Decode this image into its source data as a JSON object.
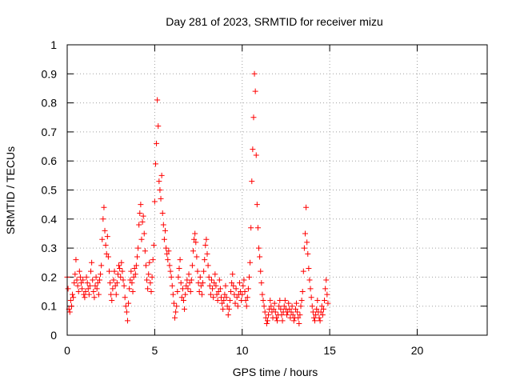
{
  "chart_data": {
    "type": "scatter",
    "title": "Day 281 of 2023, SRMTID for receiver mizu",
    "xlabel": "GPS time / hours",
    "ylabel": "SRMTID / TECUs",
    "xlim": [
      0,
      24
    ],
    "ylim": [
      0,
      1
    ],
    "x_ticks": [
      0,
      5,
      10,
      15,
      20
    ],
    "x_tick_labels": [
      "0",
      "5",
      "10",
      "15",
      "20"
    ],
    "y_ticks": [
      0,
      0.1,
      0.2,
      0.3,
      0.4,
      0.5,
      0.6,
      0.7,
      0.8,
      0.9,
      1
    ],
    "y_tick_labels": [
      "0",
      "0.1",
      "0.2",
      "0.3",
      "0.4",
      "0.5",
      "0.6",
      "0.7",
      "0.8",
      "0.9",
      "1"
    ],
    "grid": true,
    "marker": "+",
    "color": "#ff0000",
    "series": [
      {
        "name": "SRMTID",
        "x": [
          0.0,
          0.05,
          0.1,
          0.15,
          0.2,
          0.25,
          0.3,
          0.35,
          0.4,
          0.45,
          0.5,
          0.55,
          0.6,
          0.65,
          0.7,
          0.75,
          0.8,
          0.85,
          0.9,
          0.95,
          1.0,
          1.05,
          1.1,
          1.15,
          1.2,
          1.25,
          1.3,
          1.35,
          1.4,
          1.45,
          1.5,
          1.55,
          1.6,
          1.65,
          1.7,
          1.75,
          1.8,
          1.85,
          1.9,
          1.95,
          2.0,
          2.05,
          2.1,
          2.15,
          2.2,
          2.25,
          2.3,
          2.35,
          2.4,
          2.45,
          2.5,
          2.55,
          2.6,
          2.65,
          2.7,
          2.75,
          2.8,
          2.85,
          2.9,
          2.95,
          3.0,
          3.05,
          3.1,
          3.15,
          3.2,
          3.25,
          3.3,
          3.35,
          3.4,
          3.45,
          3.5,
          3.55,
          3.6,
          3.65,
          3.7,
          3.75,
          3.8,
          3.85,
          3.9,
          3.95,
          4.0,
          4.05,
          4.1,
          4.15,
          4.2,
          4.25,
          4.3,
          4.35,
          4.4,
          4.45,
          4.5,
          4.55,
          4.6,
          4.65,
          4.7,
          4.75,
          4.8,
          4.85,
          4.9,
          4.95,
          5.0,
          5.05,
          5.1,
          5.15,
          5.2,
          5.25,
          5.3,
          5.35,
          5.4,
          5.45,
          5.5,
          5.55,
          5.6,
          5.65,
          5.7,
          5.75,
          5.8,
          5.85,
          5.9,
          5.95,
          6.0,
          6.05,
          6.1,
          6.15,
          6.2,
          6.25,
          6.3,
          6.35,
          6.4,
          6.45,
          6.5,
          6.55,
          6.6,
          6.65,
          6.7,
          6.75,
          6.8,
          6.85,
          6.9,
          6.95,
          7.0,
          7.05,
          7.1,
          7.15,
          7.2,
          7.25,
          7.3,
          7.35,
          7.4,
          7.45,
          7.5,
          7.55,
          7.6,
          7.65,
          7.7,
          7.75,
          7.8,
          7.85,
          7.9,
          7.95,
          8.0,
          8.05,
          8.1,
          8.15,
          8.2,
          8.25,
          8.3,
          8.35,
          8.4,
          8.45,
          8.5,
          8.55,
          8.6,
          8.65,
          8.7,
          8.75,
          8.8,
          8.85,
          8.9,
          8.95,
          9.0,
          9.05,
          9.1,
          9.15,
          9.2,
          9.25,
          9.3,
          9.35,
          9.4,
          9.45,
          9.5,
          9.55,
          9.6,
          9.65,
          9.7,
          9.75,
          9.8,
          9.85,
          9.9,
          9.95,
          10.0,
          10.05,
          10.1,
          10.15,
          10.2,
          10.25,
          10.3,
          10.35,
          10.4,
          10.45,
          10.5,
          10.55,
          10.6,
          10.65,
          10.7,
          10.75,
          10.8,
          10.85,
          10.9,
          10.95,
          11.0,
          11.05,
          11.1,
          11.15,
          11.2,
          11.25,
          11.3,
          11.35,
          11.4,
          11.45,
          11.5,
          11.55,
          11.6,
          11.65,
          11.7,
          11.75,
          11.8,
          11.85,
          11.9,
          11.95,
          12.0,
          12.05,
          12.1,
          12.15,
          12.2,
          12.25,
          12.3,
          12.35,
          12.4,
          12.45,
          12.5,
          12.55,
          12.6,
          12.65,
          12.7,
          12.75,
          12.8,
          12.85,
          12.9,
          12.95,
          13.0,
          13.05,
          13.1,
          13.15,
          13.2,
          13.25,
          13.3,
          13.35,
          13.4,
          13.45,
          13.5,
          13.55,
          13.6,
          13.65,
          13.7,
          13.75,
          13.8,
          13.85,
          13.9,
          13.95,
          14.0,
          14.05,
          14.1,
          14.15,
          14.2,
          14.25,
          14.3,
          14.35,
          14.4,
          14.45,
          14.5,
          14.55,
          14.6,
          14.65,
          14.7,
          14.75,
          14.8,
          14.85,
          14.9
        ],
        "y": [
          0.2,
          0.16,
          0.09,
          0.08,
          0.12,
          0.1,
          0.14,
          0.13,
          0.18,
          0.21,
          0.26,
          0.19,
          0.17,
          0.15,
          0.22,
          0.2,
          0.18,
          0.16,
          0.19,
          0.14,
          0.13,
          0.15,
          0.2,
          0.18,
          0.16,
          0.14,
          0.17,
          0.22,
          0.25,
          0.19,
          0.15,
          0.13,
          0.17,
          0.2,
          0.16,
          0.18,
          0.14,
          0.19,
          0.21,
          0.24,
          0.33,
          0.4,
          0.44,
          0.36,
          0.31,
          0.28,
          0.34,
          0.27,
          0.22,
          0.18,
          0.14,
          0.12,
          0.16,
          0.19,
          0.22,
          0.17,
          0.14,
          0.18,
          0.21,
          0.24,
          0.23,
          0.2,
          0.25,
          0.22,
          0.19,
          0.17,
          0.13,
          0.1,
          0.08,
          0.05,
          0.11,
          0.16,
          0.19,
          0.22,
          0.18,
          0.15,
          0.2,
          0.23,
          0.21,
          0.24,
          0.27,
          0.3,
          0.38,
          0.42,
          0.45,
          0.33,
          0.39,
          0.41,
          0.35,
          0.29,
          0.24,
          0.19,
          0.16,
          0.21,
          0.25,
          0.18,
          0.15,
          0.2,
          0.26,
          0.31,
          0.46,
          0.59,
          0.66,
          0.81,
          0.72,
          0.53,
          0.5,
          0.47,
          0.55,
          0.42,
          0.38,
          0.33,
          0.36,
          0.3,
          0.28,
          0.26,
          0.29,
          0.24,
          0.22,
          0.2,
          0.17,
          0.14,
          0.11,
          0.06,
          0.08,
          0.1,
          0.15,
          0.2,
          0.23,
          0.26,
          0.18,
          0.13,
          0.16,
          0.12,
          0.09,
          0.14,
          0.17,
          0.19,
          0.16,
          0.21,
          0.18,
          0.15,
          0.19,
          0.24,
          0.29,
          0.33,
          0.35,
          0.32,
          0.27,
          0.22,
          0.18,
          0.15,
          0.2,
          0.17,
          0.14,
          0.18,
          0.22,
          0.26,
          0.31,
          0.33,
          0.28,
          0.24,
          0.2,
          0.17,
          0.14,
          0.19,
          0.16,
          0.13,
          0.18,
          0.21,
          0.17,
          0.14,
          0.12,
          0.15,
          0.19,
          0.16,
          0.13,
          0.11,
          0.09,
          0.12,
          0.14,
          0.17,
          0.13,
          0.1,
          0.07,
          0.09,
          0.12,
          0.15,
          0.18,
          0.21,
          0.17,
          0.14,
          0.11,
          0.16,
          0.13,
          0.1,
          0.14,
          0.18,
          0.15,
          0.12,
          0.14,
          0.17,
          0.19,
          0.15,
          0.12,
          0.1,
          0.13,
          0.16,
          0.2,
          0.25,
          0.37,
          0.53,
          0.64,
          0.75,
          0.9,
          0.84,
          0.62,
          0.45,
          0.37,
          0.3,
          0.27,
          0.22,
          0.18,
          0.14,
          0.12,
          0.1,
          0.08,
          0.06,
          0.04,
          0.05,
          0.07,
          0.09,
          0.12,
          0.1,
          0.08,
          0.06,
          0.09,
          0.11,
          0.08,
          0.06,
          0.05,
          0.07,
          0.1,
          0.12,
          0.09,
          0.07,
          0.05,
          0.08,
          0.1,
          0.12,
          0.09,
          0.07,
          0.08,
          0.11,
          0.09,
          0.06,
          0.08,
          0.1,
          0.07,
          0.05,
          0.06,
          0.09,
          0.11,
          0.08,
          0.06,
          0.04,
          0.07,
          0.1,
          0.12,
          0.15,
          0.22,
          0.3,
          0.35,
          0.44,
          0.32,
          0.28,
          0.23,
          0.19,
          0.16,
          0.13,
          0.1,
          0.08,
          0.06,
          0.05,
          0.07,
          0.09,
          0.12,
          0.08,
          0.06,
          0.05,
          0.08,
          0.1,
          0.07,
          0.09,
          0.12,
          0.16,
          0.19,
          0.14,
          0.11
        ]
      }
    ]
  }
}
